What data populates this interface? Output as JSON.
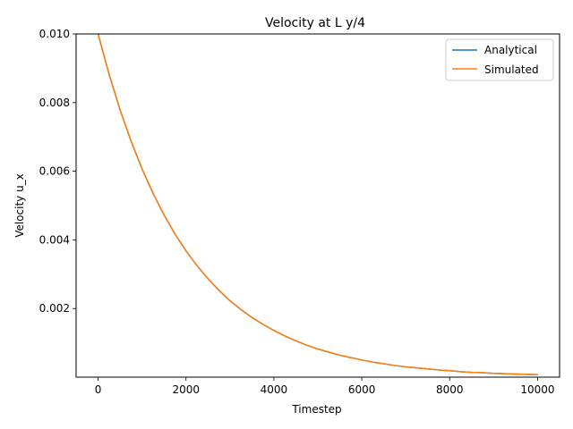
{
  "chart_data": {
    "type": "line",
    "title": "Velocity at L y/4",
    "xlabel": "Timestep",
    "ylabel": "Velocity u_x",
    "xlim": [
      -500,
      10500
    ],
    "ylim": [
      0.0,
      0.01
    ],
    "xticks": [
      0,
      2000,
      4000,
      6000,
      8000,
      10000
    ],
    "xtick_labels": [
      "0",
      "2000",
      "4000",
      "6000",
      "8000",
      "10000"
    ],
    "yticks": [
      0.002,
      0.004,
      0.006,
      0.008,
      0.01
    ],
    "ytick_labels": [
      "0.002",
      "0.004",
      "0.006",
      "0.008",
      "0.010"
    ],
    "grid": false,
    "legend_position": "top-right",
    "x": [
      0,
      250,
      500,
      750,
      1000,
      1250,
      1500,
      1750,
      2000,
      2250,
      2500,
      2750,
      3000,
      3250,
      3500,
      3750,
      4000,
      4250,
      4500,
      4750,
      5000,
      5250,
      5500,
      5750,
      6000,
      6250,
      6500,
      6750,
      7000,
      7250,
      7500,
      7750,
      8000,
      8250,
      8500,
      8750,
      9000,
      9250,
      9500,
      9750,
      10000
    ],
    "series": [
      {
        "name": "Analytical",
        "color": "#1f77b4",
        "values": [
          0.01,
          0.00883,
          0.00779,
          0.00688,
          0.00607,
          0.00536,
          0.00473,
          0.00417,
          0.00368,
          0.00325,
          0.00287,
          0.00253,
          0.00223,
          0.00197,
          0.00174,
          0.00154,
          0.00136,
          0.0012,
          0.00106,
          0.00093,
          0.00082,
          0.00073,
          0.00064,
          0.00057,
          0.0005,
          0.00044,
          0.00039,
          0.00034,
          0.0003,
          0.00027,
          0.00024,
          0.00021,
          0.00019,
          0.00016,
          0.00014,
          0.00013,
          0.00011,
          0.0001,
          9e-05,
          8e-05,
          7e-05
        ]
      },
      {
        "name": "Simulated",
        "color": "#ff7f0e",
        "values": [
          0.01,
          0.00883,
          0.00779,
          0.00688,
          0.00607,
          0.00536,
          0.00473,
          0.00417,
          0.00368,
          0.00325,
          0.00287,
          0.00253,
          0.00223,
          0.00197,
          0.00174,
          0.00154,
          0.00136,
          0.0012,
          0.00106,
          0.00093,
          0.00082,
          0.00073,
          0.00064,
          0.00057,
          0.0005,
          0.00044,
          0.00039,
          0.00034,
          0.0003,
          0.00027,
          0.00024,
          0.00021,
          0.00019,
          0.00016,
          0.00014,
          0.00013,
          0.00011,
          0.0001,
          9e-05,
          8e-05,
          7e-05
        ]
      }
    ]
  }
}
